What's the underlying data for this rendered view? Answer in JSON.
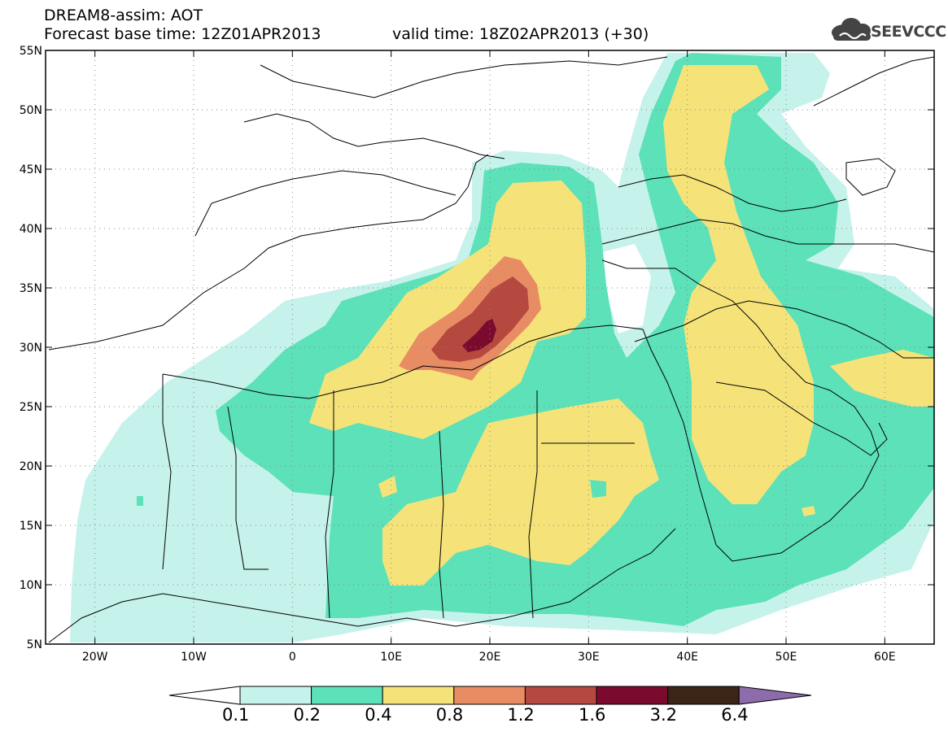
{
  "title": {
    "line1": "DREAM8-assim: AOT",
    "line2": "Forecast base time: 12Z01APR2013",
    "valid": "valid time: 18Z02APR2013 (+30)"
  },
  "logo": {
    "text": "SEEVCCC",
    "icon": "cloud-icon"
  },
  "map": {
    "variable": "AOT",
    "lon_range": [
      -25,
      65
    ],
    "lat_range": [
      5,
      55
    ],
    "grid": true,
    "lat_ticks": [
      "55N",
      "50N",
      "45N",
      "40N",
      "35N",
      "30N",
      "25N",
      "20N",
      "15N",
      "10N",
      "5N"
    ],
    "lon_ticks": [
      "20W",
      "10W",
      "0",
      "10E",
      "20E",
      "30E",
      "40E",
      "50E",
      "60E"
    ]
  },
  "legend": {
    "levels": [
      "0.1",
      "0.2",
      "0.4",
      "0.8",
      "1.2",
      "1.6",
      "3.2",
      "6.4"
    ],
    "colors": [
      "#ffffff",
      "#c6f2ec",
      "#5ce1b8",
      "#f5e37a",
      "#e88c63",
      "#b5483f",
      "#7a0b2e",
      "#3a2517",
      "#8e6bab"
    ]
  }
}
